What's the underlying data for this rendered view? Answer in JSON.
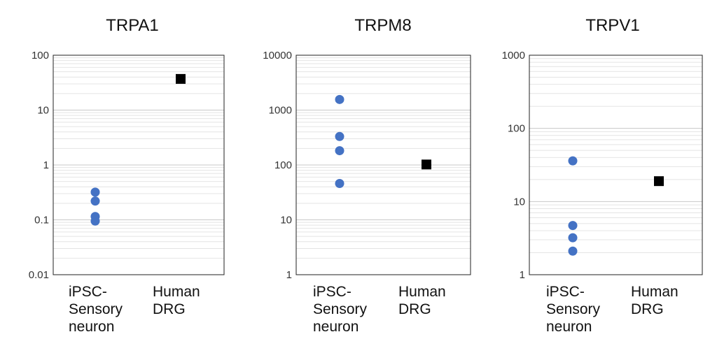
{
  "chart_data": [
    {
      "type": "scatter",
      "title": "TRPA1",
      "y_scale": "log",
      "ylim": [
        0.01,
        100
      ],
      "yticks": [
        "0.01",
        "0.1",
        "1",
        "10",
        "100"
      ],
      "categories": [
        {
          "lines": [
            "iPSC-",
            "Sensory",
            "neuron"
          ]
        },
        {
          "lines": [
            "Human",
            "DRG"
          ]
        }
      ],
      "series": [
        {
          "category": 0,
          "marker": "circle",
          "color": "#4472C4",
          "values": [
            0.32,
            0.22,
            0.115,
            0.095
          ]
        },
        {
          "category": 1,
          "marker": "square",
          "color": "#000000",
          "values": [
            37
          ]
        }
      ],
      "grid": true
    },
    {
      "type": "scatter",
      "title": "TRPM8",
      "y_scale": "log",
      "ylim": [
        1,
        10000
      ],
      "yticks": [
        "1",
        "10",
        "100",
        "1000",
        "10000"
      ],
      "categories": [
        {
          "lines": [
            "iPSC-",
            "Sensory",
            "neuron"
          ]
        },
        {
          "lines": [
            "Human",
            "DRG"
          ]
        }
      ],
      "series": [
        {
          "category": 0,
          "marker": "circle",
          "color": "#4472C4",
          "values": [
            1560,
            330,
            182,
            46
          ]
        },
        {
          "category": 1,
          "marker": "square",
          "color": "#000000",
          "values": [
            102
          ]
        }
      ],
      "grid": true
    },
    {
      "type": "scatter",
      "title": "TRPV1",
      "y_scale": "log",
      "ylim": [
        1,
        1000
      ],
      "yticks": [
        "1",
        "10",
        "100",
        "1000"
      ],
      "categories": [
        {
          "lines": [
            "iPSC-",
            "Sensory",
            "neuron"
          ]
        },
        {
          "lines": [
            "Human",
            "DRG"
          ]
        }
      ],
      "series": [
        {
          "category": 0,
          "marker": "circle",
          "color": "#4472C4",
          "values": [
            36,
            4.7,
            3.2,
            2.1
          ]
        },
        {
          "category": 1,
          "marker": "square",
          "color": "#000000",
          "values": [
            19
          ]
        }
      ],
      "grid": true
    }
  ]
}
